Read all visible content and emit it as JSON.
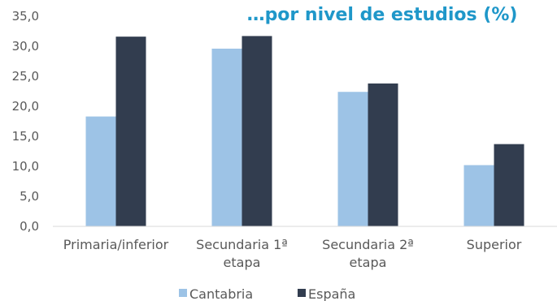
{
  "colors": {
    "title": "#1f97c9",
    "cantabria": "#9dc3e6",
    "espana": "#323d4f",
    "axis": "#d9d9d9",
    "text": "#595959"
  },
  "chart_data": {
    "type": "bar",
    "title": "…por nivel de estudios (%)",
    "categories": [
      [
        "Primaria/inferior"
      ],
      [
        "Secundaria 1ª",
        "etapa"
      ],
      [
        "Secundaria 2ª",
        "etapa"
      ],
      [
        "Superior"
      ]
    ],
    "series": [
      {
        "name": "Cantabria",
        "values": [
          18.3,
          29.6,
          22.4,
          10.2
        ]
      },
      {
        "name": "España",
        "values": [
          31.6,
          31.7,
          23.8,
          13.7
        ]
      }
    ],
    "ylim": [
      0,
      35
    ],
    "yticks": [
      "0,0",
      "5,0",
      "10,0",
      "15,0",
      "20,0",
      "25,0",
      "30,0",
      "35,0"
    ],
    "grid": false,
    "legend_position": "bottom"
  }
}
